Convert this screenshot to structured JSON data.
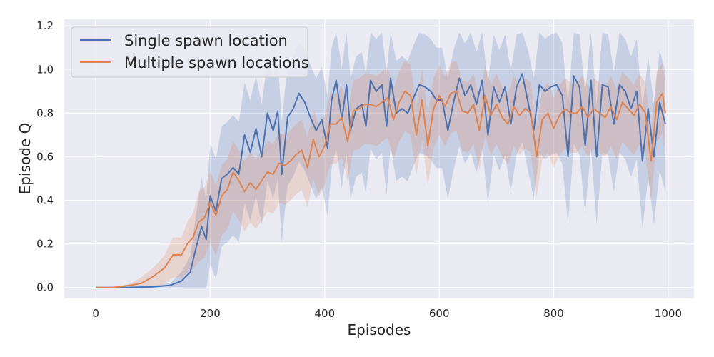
{
  "chart_data": {
    "type": "line",
    "title": "",
    "xlabel": "Episodes",
    "ylabel": "Episode Q",
    "xlim": [
      -55,
      1045
    ],
    "ylim": [
      -0.05,
      1.23
    ],
    "xticks": [
      0,
      200,
      400,
      600,
      800,
      1000
    ],
    "yticks": [
      0.0,
      0.2,
      0.4,
      0.6,
      0.8,
      1.0,
      1.2
    ],
    "xtick_labels": [
      "0",
      "200",
      "400",
      "600",
      "800",
      "1000"
    ],
    "ytick_labels": [
      "0.0",
      "0.2",
      "0.4",
      "0.6",
      "0.8",
      "1.0",
      "1.2"
    ],
    "grid": true,
    "legend_position": "top-left",
    "series": [
      {
        "name": "Single spawn location",
        "color": "#4c72b0",
        "points": [
          [
            0,
            0.0
          ],
          [
            50,
            0.0
          ],
          [
            100,
            0.003
          ],
          [
            130,
            0.01
          ],
          [
            150,
            0.03
          ],
          [
            165,
            0.07
          ],
          [
            175,
            0.18
          ],
          [
            185,
            0.28
          ],
          [
            193,
            0.22
          ],
          [
            200,
            0.42
          ],
          [
            210,
            0.35
          ],
          [
            220,
            0.5
          ],
          [
            230,
            0.52
          ],
          [
            240,
            0.55
          ],
          [
            250,
            0.52
          ],
          [
            260,
            0.7
          ],
          [
            270,
            0.62
          ],
          [
            280,
            0.73
          ],
          [
            290,
            0.6
          ],
          [
            300,
            0.8
          ],
          [
            310,
            0.72
          ],
          [
            318,
            0.81
          ],
          [
            325,
            0.52
          ],
          [
            335,
            0.78
          ],
          [
            345,
            0.82
          ],
          [
            355,
            0.89
          ],
          [
            365,
            0.85
          ],
          [
            375,
            0.78
          ],
          [
            385,
            0.72
          ],
          [
            395,
            0.77
          ],
          [
            405,
            0.64
          ],
          [
            412,
            0.86
          ],
          [
            420,
            0.95
          ],
          [
            430,
            0.77
          ],
          [
            438,
            0.93
          ],
          [
            445,
            0.72
          ],
          [
            455,
            0.82
          ],
          [
            465,
            0.84
          ],
          [
            472,
            0.74
          ],
          [
            480,
            0.95
          ],
          [
            490,
            0.9
          ],
          [
            500,
            0.93
          ],
          [
            508,
            0.74
          ],
          [
            515,
            0.96
          ],
          [
            525,
            0.8
          ],
          [
            535,
            0.82
          ],
          [
            545,
            0.8
          ],
          [
            555,
            0.87
          ],
          [
            565,
            0.93
          ],
          [
            575,
            0.92
          ],
          [
            585,
            0.9
          ],
          [
            595,
            0.86
          ],
          [
            605,
            0.86
          ],
          [
            615,
            0.72
          ],
          [
            625,
            0.85
          ],
          [
            635,
            0.96
          ],
          [
            645,
            0.88
          ],
          [
            655,
            0.93
          ],
          [
            665,
            0.84
          ],
          [
            675,
            0.95
          ],
          [
            685,
            0.7
          ],
          [
            695,
            0.92
          ],
          [
            705,
            0.85
          ],
          [
            715,
            0.92
          ],
          [
            725,
            0.75
          ],
          [
            735,
            0.92
          ],
          [
            745,
            0.98
          ],
          [
            755,
            0.85
          ],
          [
            765,
            0.72
          ],
          [
            775,
            0.93
          ],
          [
            785,
            0.9
          ],
          [
            795,
            0.92
          ],
          [
            805,
            0.93
          ],
          [
            815,
            0.88
          ],
          [
            825,
            0.6
          ],
          [
            835,
            0.97
          ],
          [
            845,
            0.92
          ],
          [
            855,
            0.65
          ],
          [
            865,
            0.95
          ],
          [
            875,
            0.6
          ],
          [
            885,
            0.93
          ],
          [
            895,
            0.92
          ],
          [
            905,
            0.75
          ],
          [
            915,
            0.93
          ],
          [
            925,
            0.9
          ],
          [
            935,
            0.82
          ],
          [
            945,
            0.9
          ],
          [
            955,
            0.58
          ],
          [
            965,
            0.82
          ],
          [
            975,
            0.6
          ],
          [
            985,
            0.85
          ],
          [
            995,
            0.75
          ]
        ]
      },
      {
        "name": "Multiple spawn locations",
        "color": "#dd8452",
        "points": [
          [
            0,
            0.0
          ],
          [
            30,
            0.0
          ],
          [
            60,
            0.01
          ],
          [
            80,
            0.02
          ],
          [
            100,
            0.05
          ],
          [
            120,
            0.09
          ],
          [
            135,
            0.15
          ],
          [
            150,
            0.15
          ],
          [
            160,
            0.2
          ],
          [
            170,
            0.23
          ],
          [
            180,
            0.3
          ],
          [
            190,
            0.32
          ],
          [
            200,
            0.39
          ],
          [
            210,
            0.33
          ],
          [
            220,
            0.42
          ],
          [
            230,
            0.45
          ],
          [
            240,
            0.53
          ],
          [
            250,
            0.49
          ],
          [
            260,
            0.44
          ],
          [
            270,
            0.48
          ],
          [
            280,
            0.45
          ],
          [
            290,
            0.49
          ],
          [
            300,
            0.53
          ],
          [
            310,
            0.52
          ],
          [
            320,
            0.57
          ],
          [
            330,
            0.56
          ],
          [
            340,
            0.58
          ],
          [
            350,
            0.61
          ],
          [
            360,
            0.63
          ],
          [
            370,
            0.55
          ],
          [
            380,
            0.68
          ],
          [
            390,
            0.6
          ],
          [
            400,
            0.65
          ],
          [
            410,
            0.75
          ],
          [
            420,
            0.75
          ],
          [
            430,
            0.78
          ],
          [
            440,
            0.67
          ],
          [
            450,
            0.81
          ],
          [
            460,
            0.82
          ],
          [
            470,
            0.84
          ],
          [
            480,
            0.84
          ],
          [
            490,
            0.83
          ],
          [
            500,
            0.85
          ],
          [
            510,
            0.87
          ],
          [
            520,
            0.77
          ],
          [
            530,
            0.85
          ],
          [
            540,
            0.9
          ],
          [
            550,
            0.88
          ],
          [
            560,
            0.7
          ],
          [
            570,
            0.86
          ],
          [
            580,
            0.65
          ],
          [
            590,
            0.82
          ],
          [
            600,
            0.88
          ],
          [
            610,
            0.83
          ],
          [
            620,
            0.89
          ],
          [
            630,
            0.9
          ],
          [
            640,
            0.81
          ],
          [
            650,
            0.8
          ],
          [
            660,
            0.84
          ],
          [
            670,
            0.72
          ],
          [
            680,
            0.88
          ],
          [
            690,
            0.79
          ],
          [
            700,
            0.84
          ],
          [
            710,
            0.78
          ],
          [
            720,
            0.75
          ],
          [
            730,
            0.83
          ],
          [
            740,
            0.79
          ],
          [
            750,
            0.82
          ],
          [
            760,
            0.8
          ],
          [
            770,
            0.6
          ],
          [
            780,
            0.77
          ],
          [
            790,
            0.8
          ],
          [
            800,
            0.73
          ],
          [
            810,
            0.79
          ],
          [
            820,
            0.82
          ],
          [
            830,
            0.8
          ],
          [
            840,
            0.8
          ],
          [
            850,
            0.83
          ],
          [
            860,
            0.78
          ],
          [
            870,
            0.82
          ],
          [
            880,
            0.8
          ],
          [
            890,
            0.78
          ],
          [
            900,
            0.83
          ],
          [
            910,
            0.77
          ],
          [
            920,
            0.85
          ],
          [
            930,
            0.82
          ],
          [
            940,
            0.79
          ],
          [
            950,
            0.84
          ],
          [
            960,
            0.8
          ],
          [
            970,
            0.58
          ],
          [
            980,
            0.85
          ],
          [
            990,
            0.89
          ],
          [
            995,
            0.8
          ]
        ]
      }
    ]
  }
}
